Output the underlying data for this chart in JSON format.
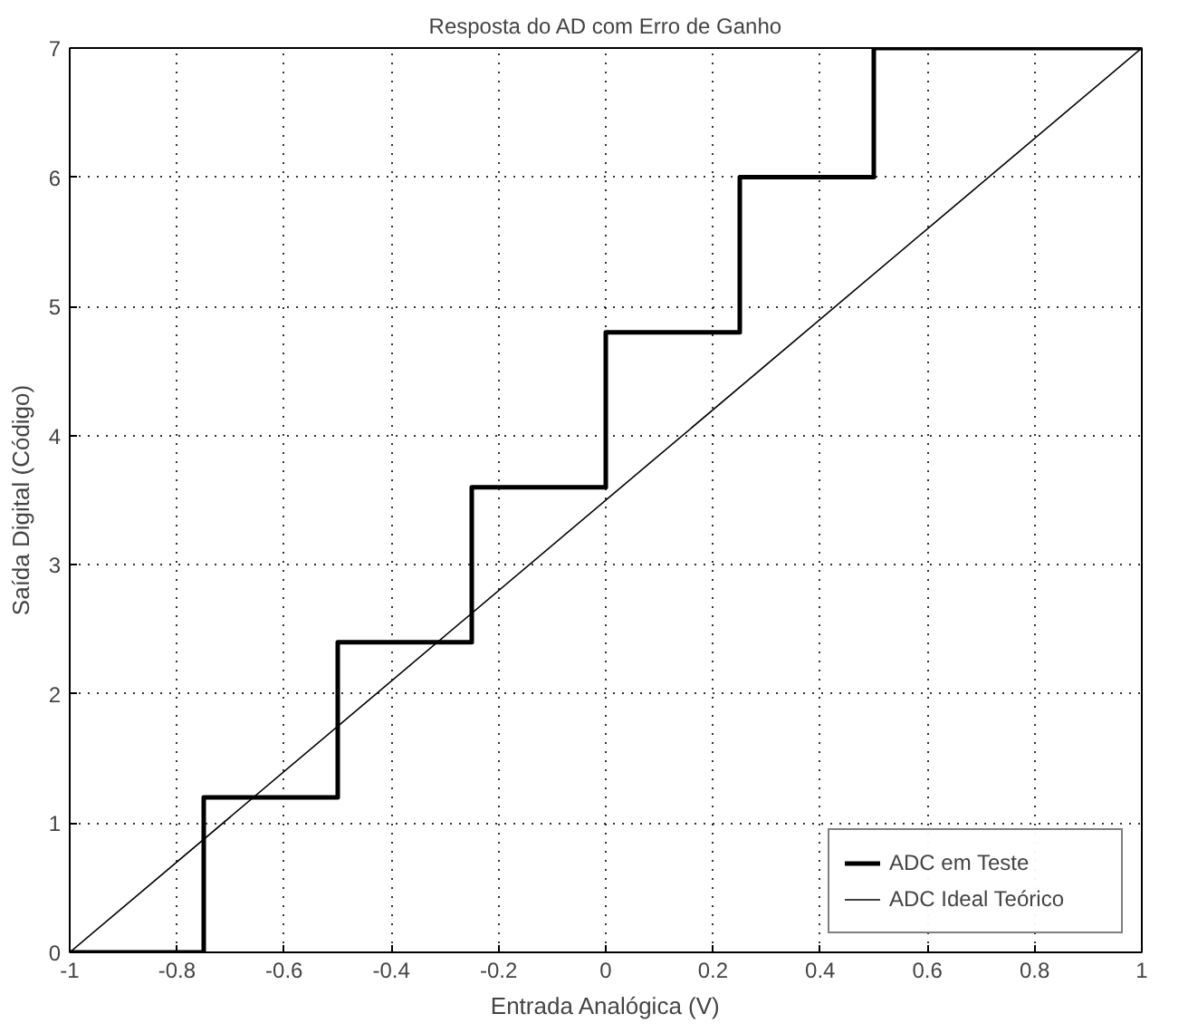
{
  "chart_data": {
    "type": "line",
    "title": "Resposta do AD com Erro de Ganho",
    "xlabel": "Entrada Analógica (V)",
    "ylabel": "Saída Digital (Código)",
    "series": [
      {
        "name": "ADC em Teste",
        "type": "step",
        "color": "#000000",
        "x": [
          -1,
          -0.75,
          -0.5,
          -0.25,
          0,
          0.25,
          0.5,
          1
        ],
        "values": [
          0,
          1.2,
          2.4,
          3.6,
          4.8,
          6.0,
          7,
          7
        ]
      },
      {
        "name": "ADC Ideal Teórico",
        "color": "#000000",
        "x": [
          -1,
          1
        ],
        "values": [
          0,
          7
        ]
      }
    ],
    "xlim": [
      -1,
      1
    ],
    "ylim": [
      0,
      7
    ],
    "xticks": [
      -1,
      -0.8,
      -0.6,
      -0.4,
      -0.2,
      0,
      0.2,
      0.4,
      0.6,
      0.8,
      1
    ],
    "yticks": [
      0,
      1,
      2,
      3,
      4,
      5,
      6,
      7
    ],
    "grid": true,
    "legend": "bottom right",
    "line_style": "solid"
  }
}
